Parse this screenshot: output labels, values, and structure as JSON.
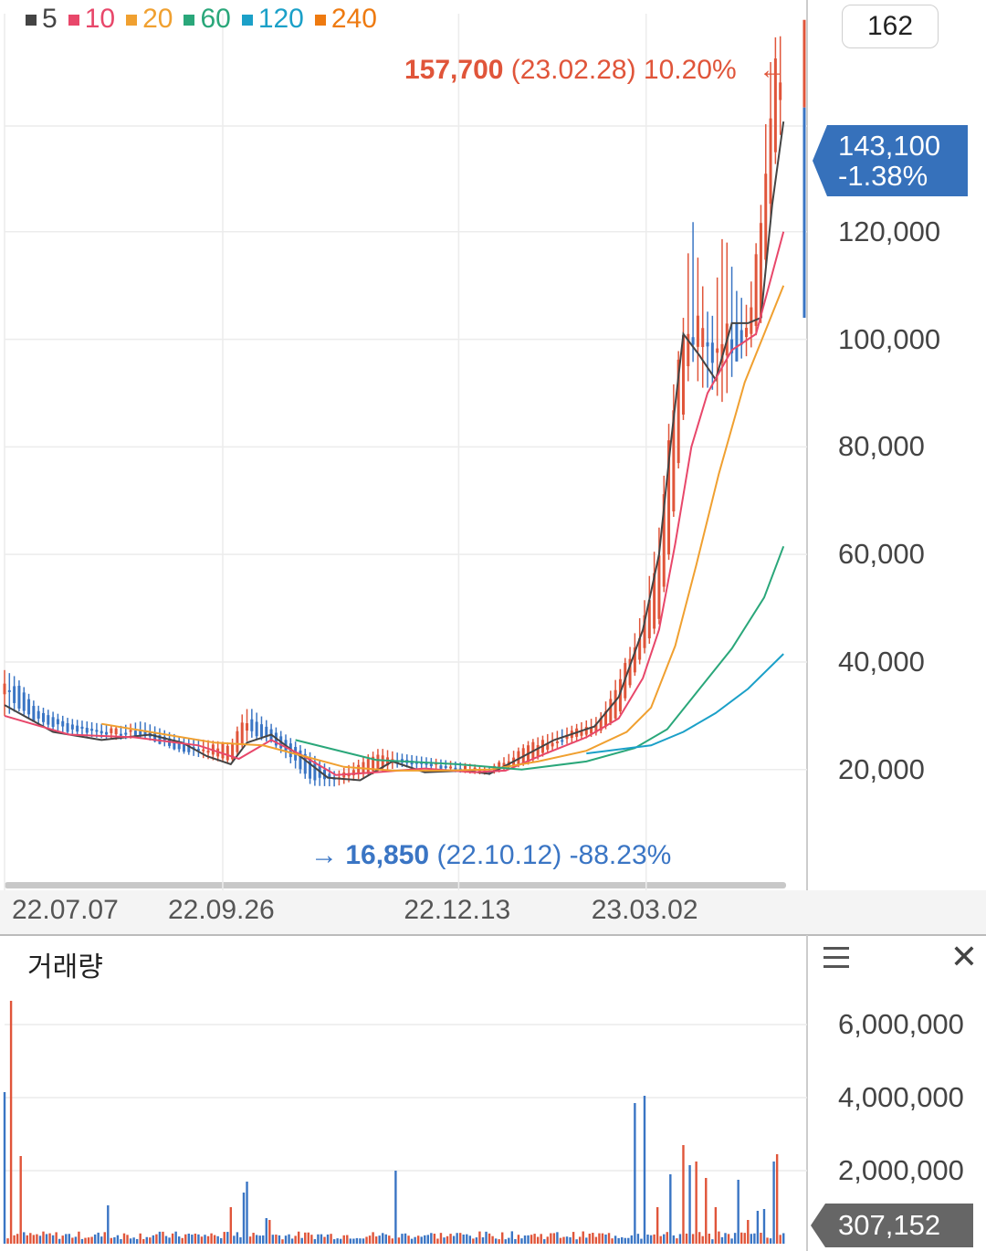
{
  "legend": [
    {
      "label": "5",
      "color": "#444444"
    },
    {
      "label": "10",
      "color": "#e8476a"
    },
    {
      "label": "20",
      "color": "#f0a030"
    },
    {
      "label": "60",
      "color": "#2aa77a"
    },
    {
      "label": "120",
      "color": "#1ba0c8"
    },
    {
      "label": "240",
      "color": "#ee7a10"
    }
  ],
  "zoom_value": "162",
  "high_annotation": {
    "price": "157,700",
    "date": "(23.02.28)",
    "pct": "10.20%",
    "arrow": "←"
  },
  "low_annotation": {
    "arrow": "→",
    "price": "16,850",
    "date": "(22.10.12)",
    "pct": "-88.23%"
  },
  "current_price": {
    "price": "143,100",
    "change": "-1.38%"
  },
  "volume_title": "거래량",
  "volume_current": "307,152",
  "colors": {
    "up": "#e0553a",
    "down": "#3a75c4",
    "ma5": "#444444",
    "ma10": "#e8476a",
    "ma20": "#f0a030",
    "ma60": "#2aa77a",
    "ma120": "#1ba0c8"
  },
  "chart_data": {
    "type": "line",
    "price_axis": {
      "ticks": [
        "20,000",
        "40,000",
        "60,000",
        "80,000",
        "100,000",
        "120,000"
      ],
      "tick_values": [
        20000,
        40000,
        60000,
        80000,
        100000,
        120000
      ],
      "ylim": [
        4000,
        158000
      ]
    },
    "x_ticks": [
      "22.07.07",
      "22.09.26",
      "22.12.13",
      "23.03.02"
    ],
    "volume_axis": {
      "ticks": [
        "2,000,000",
        "4,000,000",
        "6,000,000"
      ],
      "tick_values": [
        2000000,
        4000000,
        6000000
      ],
      "ylim": [
        0,
        8300000
      ]
    },
    "series": [
      {
        "name": "5",
        "points": [
          [
            0,
            32000
          ],
          [
            30,
            27000
          ],
          [
            60,
            25500
          ],
          [
            90,
            26500
          ],
          [
            110,
            25000
          ],
          [
            125,
            22500
          ],
          [
            140,
            21000
          ],
          [
            150,
            25000
          ],
          [
            165,
            26500
          ],
          [
            185,
            22000
          ],
          [
            200,
            18500
          ],
          [
            220,
            18000
          ],
          [
            240,
            21500
          ],
          [
            260,
            19500
          ],
          [
            285,
            19800
          ],
          [
            300,
            19200
          ],
          [
            315,
            21500
          ],
          [
            340,
            25500
          ],
          [
            365,
            28000
          ],
          [
            380,
            33500
          ],
          [
            395,
            46000
          ],
          [
            405,
            60000
          ],
          [
            412,
            80000
          ],
          [
            420,
            101000
          ],
          [
            430,
            97000
          ],
          [
            440,
            92500
          ],
          [
            450,
            103000
          ],
          [
            460,
            103000
          ],
          [
            468,
            104000
          ],
          [
            475,
            125000
          ],
          [
            482,
            140500
          ]
        ]
      },
      {
        "name": "10",
        "points": [
          [
            0,
            30000
          ],
          [
            40,
            26500
          ],
          [
            80,
            26000
          ],
          [
            120,
            24500
          ],
          [
            145,
            22000
          ],
          [
            165,
            25500
          ],
          [
            185,
            22500
          ],
          [
            205,
            19000
          ],
          [
            230,
            19500
          ],
          [
            260,
            20200
          ],
          [
            290,
            19500
          ],
          [
            310,
            19800
          ],
          [
            335,
            23000
          ],
          [
            360,
            26000
          ],
          [
            380,
            29500
          ],
          [
            395,
            37000
          ],
          [
            405,
            46000
          ],
          [
            415,
            62000
          ],
          [
            425,
            80000
          ],
          [
            435,
            90000
          ],
          [
            450,
            98000
          ],
          [
            465,
            101000
          ],
          [
            482,
            120000
          ]
        ]
      },
      {
        "name": "20",
        "points": [
          [
            60,
            28500
          ],
          [
            100,
            26500
          ],
          [
            130,
            25000
          ],
          [
            160,
            24500
          ],
          [
            185,
            22500
          ],
          [
            210,
            20500
          ],
          [
            240,
            19800
          ],
          [
            270,
            19800
          ],
          [
            300,
            20000
          ],
          [
            330,
            21500
          ],
          [
            360,
            23500
          ],
          [
            385,
            27000
          ],
          [
            400,
            31500
          ],
          [
            415,
            43000
          ],
          [
            428,
            58000
          ],
          [
            442,
            75000
          ],
          [
            458,
            92000
          ],
          [
            470,
            101000
          ],
          [
            482,
            110000
          ]
        ]
      },
      {
        "name": "60",
        "points": [
          [
            180,
            25500
          ],
          [
            230,
            21800
          ],
          [
            280,
            21000
          ],
          [
            320,
            20000
          ],
          [
            360,
            21500
          ],
          [
            390,
            24000
          ],
          [
            410,
            27500
          ],
          [
            430,
            35000
          ],
          [
            450,
            42500
          ],
          [
            470,
            52000
          ],
          [
            482,
            61500
          ]
        ]
      },
      {
        "name": "120",
        "points": [
          [
            360,
            23000
          ],
          [
            400,
            24500
          ],
          [
            420,
            27000
          ],
          [
            440,
            30500
          ],
          [
            460,
            35000
          ],
          [
            482,
            41500
          ]
        ]
      }
    ],
    "ohlc_samples": [
      [
        0,
        34000,
        38500,
        30000,
        36000
      ],
      [
        8,
        36000,
        37000,
        31000,
        32000
      ],
      [
        20,
        31000,
        32000,
        28500,
        29000
      ],
      [
        40,
        28500,
        29500,
        26500,
        27500
      ],
      [
        70,
        26500,
        28000,
        25500,
        27000
      ],
      [
        85,
        27500,
        29000,
        26000,
        26500
      ],
      [
        110,
        25000,
        26000,
        23000,
        23500
      ],
      [
        140,
        21500,
        25000,
        21000,
        24500
      ],
      [
        148,
        25000,
        31000,
        24500,
        29500
      ],
      [
        152,
        29500,
        31500,
        26000,
        27000
      ],
      [
        165,
        27500,
        28500,
        25000,
        26000
      ],
      [
        190,
        22000,
        23000,
        17000,
        18000
      ],
      [
        205,
        18200,
        19500,
        16850,
        18500
      ],
      [
        232,
        20000,
        24000,
        19500,
        22500
      ],
      [
        245,
        22000,
        23000,
        20500,
        21500
      ],
      [
        290,
        19800,
        21000,
        19200,
        20000
      ],
      [
        300,
        19500,
        20500,
        19000,
        19800
      ],
      [
        325,
        21500,
        25500,
        21000,
        24500
      ],
      [
        345,
        25500,
        27500,
        24500,
        26000
      ],
      [
        368,
        27000,
        30000,
        26500,
        29000
      ],
      [
        380,
        30000,
        38000,
        29500,
        36500
      ],
      [
        388,
        36500,
        43500,
        36000,
        42000
      ],
      [
        395,
        42000,
        50000,
        41000,
        47000
      ],
      [
        405,
        48000,
        65000,
        47000,
        61000
      ],
      [
        412,
        62000,
        87500,
        61000,
        85000
      ],
      [
        420,
        86000,
        104000,
        85000,
        101000
      ],
      [
        425,
        101000,
        124000,
        97000,
        99000
      ],
      [
        430,
        98000,
        113000,
        91000,
        103000
      ],
      [
        437,
        100000,
        102000,
        91000,
        96000
      ],
      [
        445,
        95000,
        121000,
        88000,
        102000
      ],
      [
        453,
        103000,
        109000,
        96000,
        98000
      ],
      [
        460,
        100000,
        106000,
        97000,
        104000
      ],
      [
        468,
        104000,
        125000,
        103000,
        122000
      ],
      [
        473,
        122000,
        150000,
        119000,
        138000
      ],
      [
        478,
        138000,
        157700,
        136000,
        152000
      ],
      [
        482,
        151000,
        155000,
        140000,
        143100
      ]
    ]
  }
}
